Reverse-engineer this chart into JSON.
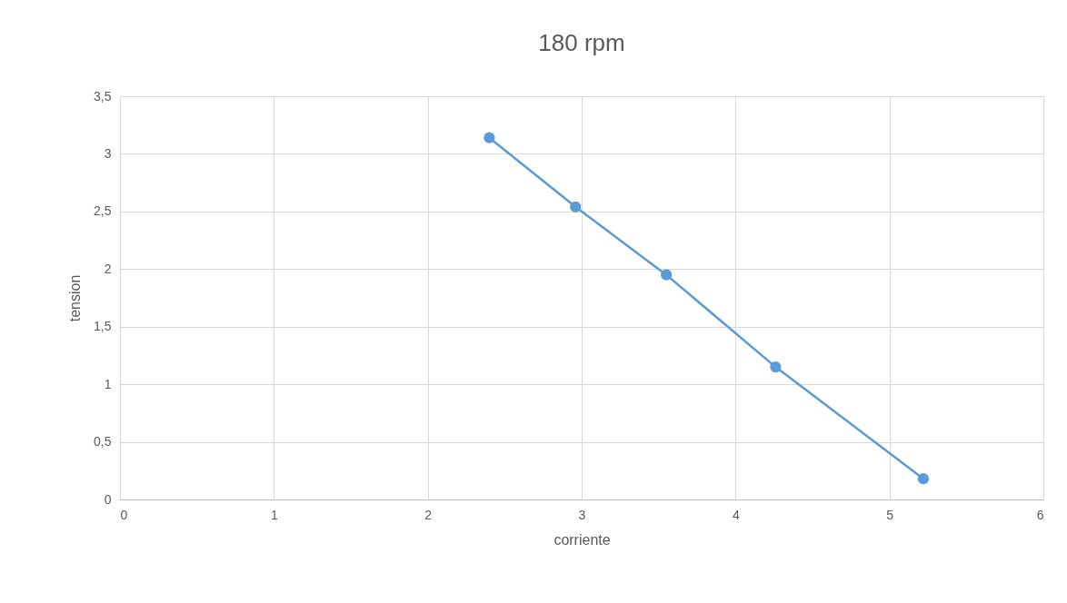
{
  "chart_data": {
    "type": "line",
    "title": "180 rpm",
    "xlabel": "corriente",
    "ylabel": "tension",
    "x": [
      2.4,
      2.96,
      3.55,
      4.26,
      5.22
    ],
    "series": [
      {
        "color": "#5b9bd5",
        "values": [
          3.14,
          2.54,
          1.95,
          1.15,
          0.18
        ]
      }
    ],
    "xlim": [
      0,
      6
    ],
    "xticks": [
      0,
      1,
      2,
      3,
      4,
      5,
      6
    ],
    "ylim": [
      0,
      3.5
    ],
    "yticks": [
      0,
      {
        "value": 0.5,
        "label": "0,5"
      },
      1,
      {
        "value": 1.5,
        "label": "1,5"
      },
      2,
      {
        "value": 2.5,
        "label": "2,5"
      },
      3,
      {
        "value": 3.5,
        "label": "3,5"
      }
    ],
    "grid": true,
    "marker": "circle",
    "line_style": "solid",
    "legend": false
  }
}
